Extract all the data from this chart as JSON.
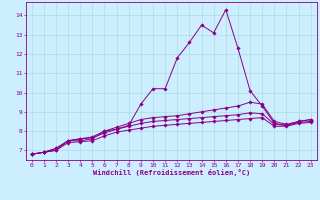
{
  "xlabel": "Windchill (Refroidissement éolien,°C)",
  "background_color": "#cceeff",
  "line_color": "#880088",
  "xlim": [
    -0.5,
    23.5
  ],
  "ylim": [
    6.5,
    14.7
  ],
  "yticks": [
    7,
    8,
    9,
    10,
    11,
    12,
    13,
    14
  ],
  "xticks": [
    0,
    1,
    2,
    3,
    4,
    5,
    6,
    7,
    8,
    9,
    10,
    11,
    12,
    13,
    14,
    15,
    16,
    17,
    18,
    19,
    20,
    21,
    22,
    23
  ],
  "grid_color": "#aadddd",
  "lines": [
    [
      6.8,
      6.9,
      7.0,
      7.5,
      7.5,
      7.6,
      8.0,
      8.1,
      8.3,
      9.4,
      10.2,
      10.2,
      11.8,
      12.6,
      13.5,
      13.1,
      14.3,
      12.3,
      10.1,
      9.3,
      8.4,
      8.3,
      8.5,
      8.6
    ],
    [
      6.8,
      6.9,
      7.1,
      7.5,
      7.6,
      7.7,
      8.0,
      8.2,
      8.4,
      8.6,
      8.7,
      8.75,
      8.8,
      8.9,
      9.0,
      9.1,
      9.2,
      9.3,
      9.5,
      9.4,
      8.5,
      8.35,
      8.5,
      8.6
    ],
    [
      6.8,
      6.9,
      7.1,
      7.5,
      7.6,
      7.65,
      7.9,
      8.1,
      8.25,
      8.4,
      8.5,
      8.55,
      8.6,
      8.65,
      8.7,
      8.75,
      8.8,
      8.85,
      8.95,
      8.9,
      8.35,
      8.3,
      8.45,
      8.5
    ],
    [
      6.8,
      6.9,
      7.0,
      7.4,
      7.45,
      7.5,
      7.75,
      7.95,
      8.05,
      8.15,
      8.25,
      8.3,
      8.35,
      8.4,
      8.45,
      8.5,
      8.55,
      8.6,
      8.65,
      8.7,
      8.25,
      8.25,
      8.4,
      8.45
    ]
  ]
}
